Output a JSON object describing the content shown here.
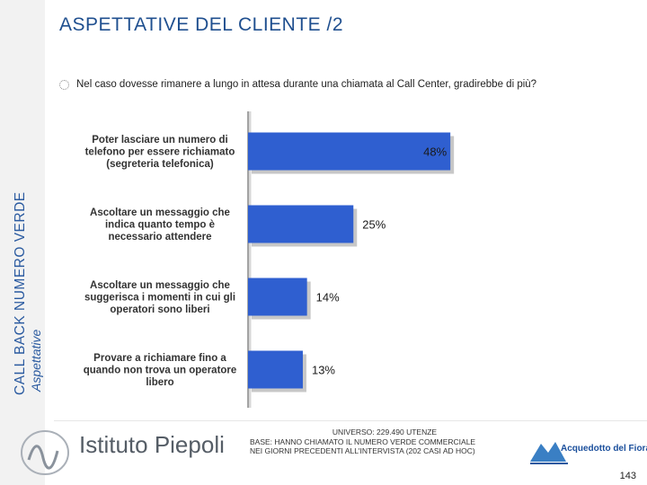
{
  "sidebar": {
    "vertical_title": "CALL BACK NUMERO VERDE",
    "vertical_subtitle": "Aspettative"
  },
  "header": {
    "title": "ASPETTATIVE DEL CLIENTE /2"
  },
  "question": {
    "text": "Nel caso dovesse rimanere a lungo in attesa durante una chiamata al Call Center, gradirebbe di più?"
  },
  "chart_data": {
    "type": "bar",
    "orientation": "horizontal",
    "categories": [
      [
        "Poter lasciare un numero di",
        "telefono per essere richiamato",
        "(segreteria telefonica)"
      ],
      [
        "Ascoltare un messaggio che",
        "indica quanto tempo è",
        "necessario attendere"
      ],
      [
        "Ascoltare un messaggio che",
        "suggerisca i momenti in cui gli",
        "operatori sono liberi"
      ],
      [
        "Provare a richiamare fino a",
        "quando non trova un operatore",
        "libero"
      ]
    ],
    "values": [
      48,
      25,
      14,
      13
    ],
    "value_labels": [
      "48%",
      "25%",
      "14%",
      "13%"
    ],
    "unit": "%",
    "xlim": [
      0,
      55
    ],
    "bar_color": "#2f5fd0",
    "grid": false,
    "legend": "none"
  },
  "footer": {
    "universe": "UNIVERSO: 229.490 UTENZE",
    "base_line1": "BASE: HANNO CHIAMATO IL NUMERO VERDE COMMERCIALE",
    "base_line2": "NEI GIORNI PRECEDENTI ALL'INTERVISTA (202 CASI AD HOC)",
    "left_logo": "Istituto Piepoli",
    "right_logo": "Acquedotto del Fiora",
    "page_number": "143"
  },
  "colors": {
    "title": "#1f4f8f",
    "bar": "#2f5fd0",
    "bar_shadow": "#c7c7c7"
  },
  "icons": {
    "left_logo_mark": "piepoli-wave-logo",
    "right_logo_mark": "mountain-logo",
    "bullet": "dotted-circle-icon"
  }
}
